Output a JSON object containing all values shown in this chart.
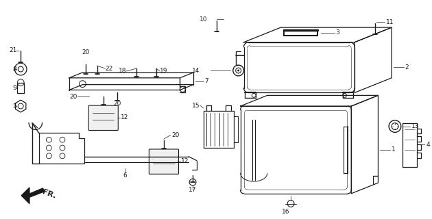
{
  "bg_color": "#ffffff",
  "line_color": "#1a1a1a",
  "fig_w": 6.3,
  "fig_h": 3.2,
  "dpi": 100
}
